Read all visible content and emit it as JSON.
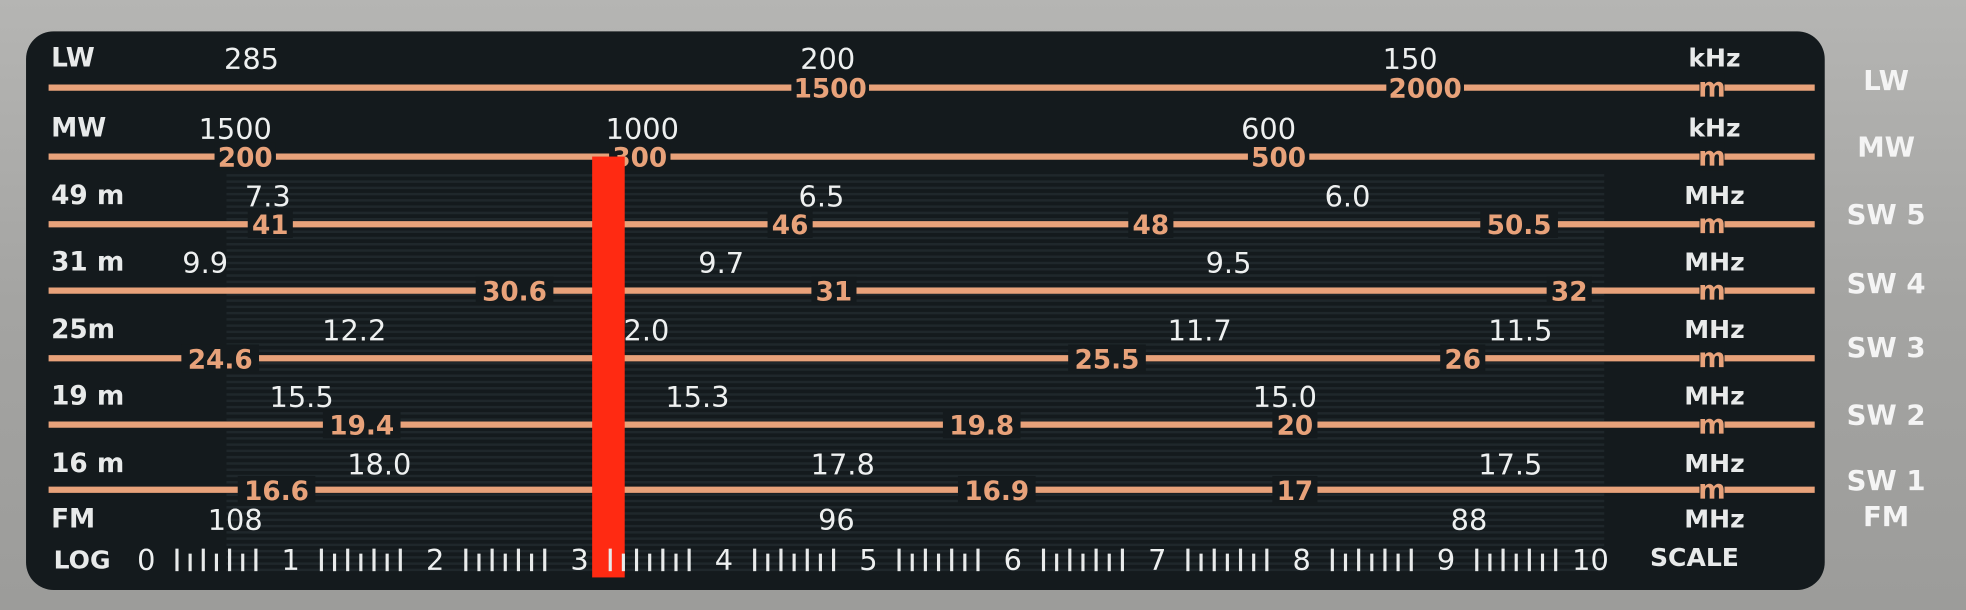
{
  "colors": {
    "panel": "#141a1d",
    "wavelength_line": "#e8a27a",
    "pointer": "#ff2a12",
    "text": "#eef0f0",
    "housing": "#a9a9a7"
  },
  "rows": [
    {
      "band": "LW",
      "unit": "kHz",
      "side": "LW",
      "freqs": [
        "285",
        "200",
        "150"
      ],
      "wavelengths": [
        "1500",
        "2000"
      ],
      "wl_unit": "m"
    },
    {
      "band": "MW",
      "unit": "kHz",
      "side": "MW",
      "freqs": [
        "1500",
        "1000",
        "600"
      ],
      "wavelengths": [
        "200",
        "300",
        "500"
      ],
      "wl_unit": "m"
    },
    {
      "band": "49 m",
      "unit": "MHz",
      "side": "SW 5",
      "freqs": [
        "7.3",
        "6.5",
        "6.0"
      ],
      "wavelengths": [
        "41",
        "46",
        "48",
        "50.5"
      ],
      "wl_unit": "m"
    },
    {
      "band": "31 m",
      "unit": "MHz",
      "side": "SW 4",
      "freqs": [
        "9.9",
        "9.7",
        "9.5"
      ],
      "wavelengths": [
        "30.6",
        "31",
        "32"
      ],
      "wl_unit": "m"
    },
    {
      "band": "25m",
      "unit": "MHz",
      "side": "SW 3",
      "freqs": [
        "12.2",
        "12.0",
        "11.7",
        "11.5"
      ],
      "wavelengths": [
        "24.6",
        "25.5",
        "26"
      ],
      "wl_unit": "m"
    },
    {
      "band": "19 m",
      "unit": "MHz",
      "side": "SW 2",
      "freqs": [
        "15.5",
        "15.3",
        "15.0"
      ],
      "wavelengths": [
        "19.4",
        "19.8",
        "20"
      ],
      "wl_unit": "m"
    },
    {
      "band": "16 m",
      "unit": "MHz",
      "side": "SW 1",
      "freqs": [
        "18.0",
        "17.8",
        "17.5"
      ],
      "wavelengths": [
        "16.6",
        "16.9",
        "17"
      ],
      "wl_unit": "m"
    },
    {
      "band": "FM",
      "unit": "MHz",
      "side": "FM",
      "freqs": [
        "108",
        "96",
        "88"
      ]
    }
  ],
  "log_scale": {
    "label": "LOG",
    "ticks": [
      "0",
      "1",
      "2",
      "3",
      "4",
      "5",
      "6",
      "7",
      "8",
      "9",
      "10"
    ],
    "unit": "SCALE"
  },
  "pointer": {
    "log_position": 3.2
  }
}
